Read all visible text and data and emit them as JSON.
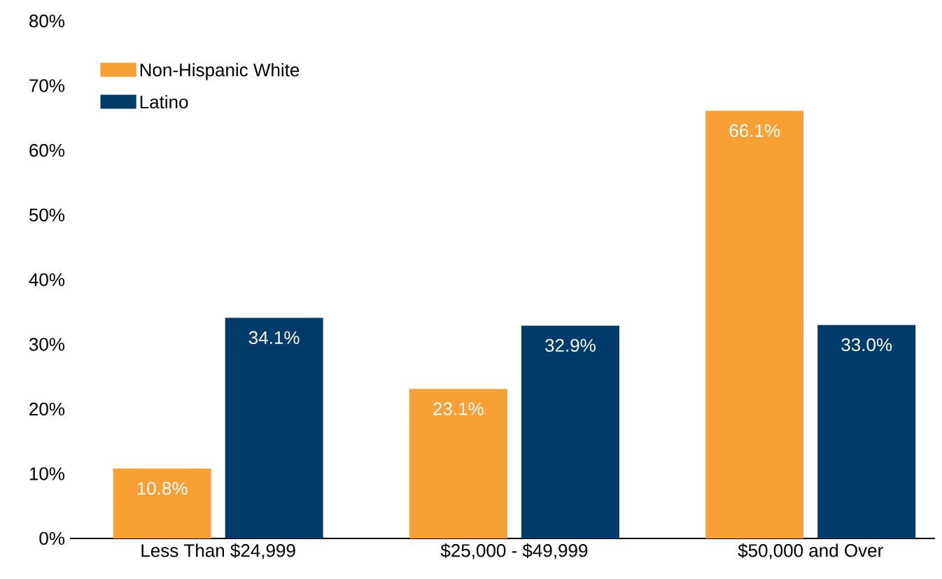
{
  "chart_data": {
    "type": "bar",
    "categories": [
      "Less Than $24,999",
      "$25,000 - $49,999",
      "$50,000 and Over"
    ],
    "series": [
      {
        "name": "Non-Hispanic White",
        "color": "#f7a035",
        "values": [
          10.8,
          23.1,
          66.1
        ],
        "value_labels": [
          "10.8%",
          "23.1%",
          "66.1%"
        ]
      },
      {
        "name": "Latino",
        "color": "#003c69",
        "values": [
          34.1,
          32.9,
          33.0
        ],
        "value_labels": [
          "34.1%",
          "32.9%",
          "33.0%"
        ]
      }
    ],
    "ylim": [
      0,
      80
    ],
    "yticks": [
      {
        "value": 0,
        "label": "0%"
      },
      {
        "value": 10,
        "label": "10%"
      },
      {
        "value": 20,
        "label": "20%"
      },
      {
        "value": 30,
        "label": "30%"
      },
      {
        "value": 40,
        "label": "40%"
      },
      {
        "value": 50,
        "label": "50%"
      },
      {
        "value": 60,
        "label": "60%"
      },
      {
        "value": 70,
        "label": "70%"
      },
      {
        "value": 80,
        "label": "80%"
      }
    ],
    "grid": false,
    "legend": "top left"
  }
}
